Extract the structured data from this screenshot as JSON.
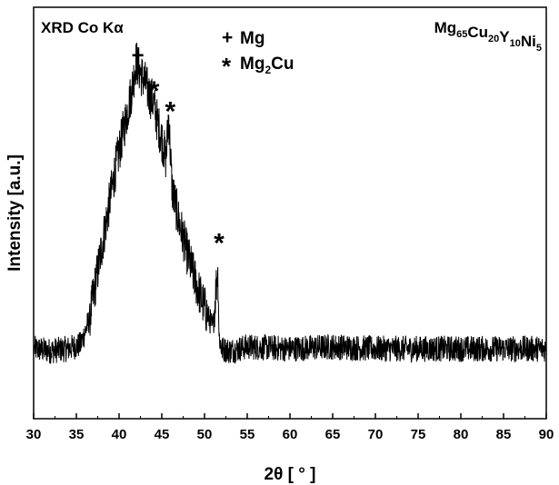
{
  "chart_data": {
    "type": "line",
    "title_left": "XRD Co Kα",
    "composition": {
      "parts": [
        {
          "el": "Mg",
          "sub": "65"
        },
        {
          "el": "Cu",
          "sub": "20"
        },
        {
          "el": "Y",
          "sub": "10"
        },
        {
          "el": "Ni",
          "sub": "5"
        }
      ]
    },
    "legend": [
      {
        "symbol": "+",
        "label": "Mg",
        "sub": ""
      },
      {
        "symbol": "*",
        "label": "Mg",
        "sub": "2",
        "label2": "Cu"
      }
    ],
    "xlabel": "2θ [ ° ]",
    "ylabel": "Intensity [a.u.]",
    "xlim": [
      30,
      90
    ],
    "ylim": [
      0,
      100
    ],
    "xticks": [
      30,
      35,
      40,
      45,
      50,
      55,
      60,
      65,
      70,
      75,
      80,
      85,
      90
    ],
    "yticks_shown": false,
    "grid": false,
    "series": [
      {
        "color": "#000000",
        "x": [
          30.0,
          32.0,
          34.0,
          35.5,
          36.5,
          37.5,
          38.5,
          39.5,
          40.5,
          41.5,
          42.0,
          42.5,
          43.0,
          43.5,
          44.0,
          44.5,
          45.0,
          45.5,
          45.8,
          46.2,
          47.0,
          48.0,
          49.0,
          50.0,
          51.0,
          51.5,
          51.6,
          51.7,
          52.0,
          53.0,
          55.0,
          60.0,
          65.0,
          70.0,
          75.0,
          80.0,
          85.0,
          90.0
        ],
        "y": [
          17.0,
          16.5,
          17.0,
          18.0,
          24.0,
          36.0,
          48.0,
          60.0,
          70.0,
          80.0,
          87.0,
          84.0,
          82.0,
          79.0,
          77.0,
          72.0,
          68.0,
          63.0,
          74.0,
          56.0,
          48.0,
          40.0,
          33.0,
          27.0,
          22.0,
          36.0,
          33.0,
          20.0,
          17.0,
          16.5,
          17.5,
          17.0,
          17.5,
          17.0,
          17.0,
          17.0,
          17.0,
          17.0
        ]
      }
    ],
    "peak_markers": [
      {
        "x": 42.2,
        "y": 87,
        "symbol": "+"
      },
      {
        "x": 44.1,
        "y": 81,
        "symbol": "*"
      },
      {
        "x": 46.0,
        "y": 76,
        "symbol": "*"
      },
      {
        "x": 51.7,
        "y": 44,
        "symbol": "*"
      }
    ]
  }
}
